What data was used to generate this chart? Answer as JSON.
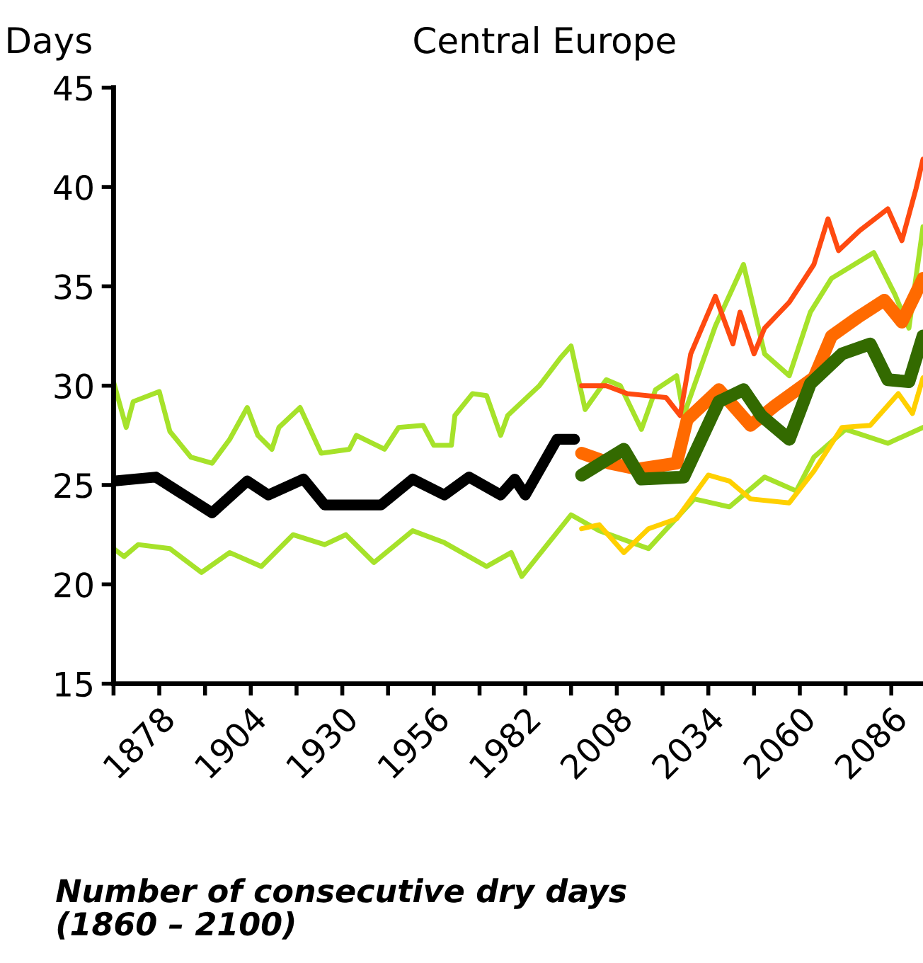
{
  "chart_data": {
    "type": "line",
    "title": "Central Europe",
    "ylabel": "Days",
    "annotations": [
      "Number of consecutive dry days\n(1860 – 2100)"
    ],
    "xlim": [
      1865,
      2095
    ],
    "ylim": [
      15,
      45
    ],
    "xticks": [
      {
        "value": 1865,
        "label": null
      },
      1878,
      {
        "value": 1891,
        "label": null
      },
      1904,
      {
        "value": 1917,
        "label": null
      },
      1930,
      {
        "value": 1943,
        "label": null
      },
      1956,
      {
        "value": 1969,
        "label": null
      },
      1982,
      {
        "value": 1995,
        "label": null
      },
      2008,
      {
        "value": 2021,
        "label": null
      },
      2034,
      {
        "value": 2047,
        "label": null
      },
      2060,
      {
        "value": 2073,
        "label": null
      },
      2086
    ],
    "yticks": [
      15,
      20,
      25,
      30,
      35,
      40,
      45
    ],
    "grid": false,
    "legend": false,
    "marker": "none",
    "line_style": "solid",
    "series": [
      {
        "color": "#a6e22a",
        "x": [
          1865,
          1868.6,
          1870.6,
          1878,
          1881,
          1887,
          1893,
          1898,
          1903,
          1906,
          1910,
          1912,
          1918,
          1924,
          1932,
          1934,
          1942,
          1946,
          1953,
          1956,
          1961,
          1962,
          1967,
          1971,
          1975,
          1977,
          1986,
          1992,
          1995,
          1999,
          2005,
          2009,
          2015,
          2019,
          2025,
          2027,
          2036,
          2044,
          2050,
          2057,
          2063,
          2069,
          2081,
          2087,
          2091,
          2095
        ],
        "values": [
          30.2,
          27.9,
          29.2,
          29.7,
          27.7,
          26.4,
          26.1,
          27.3,
          28.9,
          27.5,
          26.8,
          27.9,
          28.9,
          26.6,
          26.8,
          27.5,
          26.8,
          27.9,
          28.0,
          27.0,
          27.0,
          28.5,
          29.6,
          29.5,
          27.5,
          28.5,
          30.0,
          31.4,
          32.0,
          28.8,
          30.3,
          30.0,
          27.8,
          29.8,
          30.5,
          28.5,
          33.0,
          36.1,
          31.6,
          30.5,
          33.7,
          35.4,
          36.7,
          34.6,
          32.9,
          38.0
        ]
      },
      {
        "color": "#a6e22a",
        "x": [
          1865,
          1868,
          1872,
          1881,
          1890,
          1898,
          1907,
          1916,
          1925,
          1931,
          1939,
          1950,
          1959,
          1971,
          1978,
          1981,
          1995,
          2003,
          2017,
          2030,
          2040,
          2050,
          2059,
          2064,
          2073,
          2085,
          2095
        ],
        "values": [
          21.8,
          21.4,
          22.0,
          21.8,
          20.6,
          21.6,
          20.9,
          22.5,
          22.0,
          22.5,
          21.1,
          22.7,
          22.1,
          20.9,
          21.6,
          20.4,
          23.5,
          22.7,
          21.8,
          24.3,
          23.9,
          25.4,
          24.7,
          26.4,
          27.8,
          27.1,
          27.9
        ]
      },
      {
        "color": "#000000",
        "x": [
          1865,
          1877,
          1893,
          1903,
          1909,
          1919,
          1925,
          1941,
          1950,
          1959,
          1966,
          1975,
          1979,
          1982,
          1991,
          1996
        ],
        "values": [
          25.2,
          25.4,
          23.6,
          25.2,
          24.5,
          25.3,
          24.0,
          24.0,
          25.3,
          24.5,
          25.4,
          24.5,
          25.3,
          24.5,
          27.3,
          27.3
        ]
      },
      {
        "color": "#ff4a10",
        "x": [
          1998,
          2005,
          2011,
          2022,
          2026,
          2029,
          2036,
          2041,
          2043,
          2047,
          2050,
          2057,
          2064,
          2068,
          2071,
          2077,
          2085,
          2089,
          2093,
          2095
        ],
        "values": [
          30.0,
          30.0,
          29.6,
          29.4,
          28.5,
          31.6,
          34.5,
          32.1,
          33.7,
          31.6,
          32.9,
          34.2,
          36.1,
          38.4,
          36.8,
          37.8,
          38.9,
          37.3,
          39.9,
          41.4
        ]
      },
      {
        "color": "#ffd000",
        "x": [
          1998,
          2003,
          2010,
          2017,
          2025,
          2034,
          2040,
          2046,
          2057,
          2064,
          2072,
          2080,
          2088,
          2092,
          2095
        ],
        "values": [
          22.8,
          23.0,
          21.6,
          22.8,
          23.3,
          25.5,
          25.2,
          24.3,
          24.1,
          25.7,
          27.9,
          28.0,
          29.6,
          28.6,
          30.4
        ]
      },
      {
        "color": "#ff6a00",
        "x": [
          1998,
          2006,
          2014,
          2025,
          2028,
          2037,
          2046,
          2053,
          2064,
          2069,
          2077,
          2084,
          2089,
          2095
        ],
        "values": [
          26.6,
          26.1,
          25.8,
          26.1,
          28.3,
          29.8,
          28.0,
          29.0,
          30.4,
          32.5,
          33.5,
          34.3,
          33.2,
          35.4
        ]
      },
      {
        "color": "#336a00",
        "x": [
          1998,
          2010,
          2015,
          2027,
          2037,
          2044,
          2049,
          2057,
          2063,
          2072,
          2080,
          2085,
          2091,
          2095
        ],
        "values": [
          25.5,
          26.8,
          25.3,
          25.4,
          29.2,
          29.8,
          28.5,
          27.3,
          30.1,
          31.6,
          32.1,
          30.3,
          30.2,
          32.5
        ]
      }
    ]
  }
}
